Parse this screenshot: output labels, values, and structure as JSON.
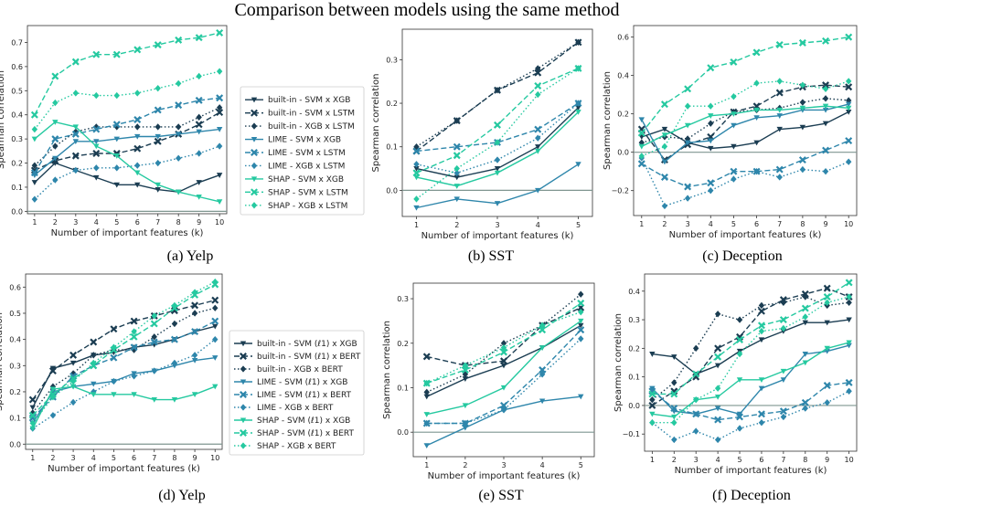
{
  "figure_title": "Comparison between models using the same method",
  "colors": {
    "builtin": "#1b3d52",
    "lime": "#2e86ab",
    "shap": "#25c9a0",
    "zero_line": "#7f9690",
    "frame": "#333333"
  },
  "legends": [
    [
      "built-in - SVM x XGB",
      "built-in - SVM x LSTM",
      "built-in - XGB x LSTM",
      "LIME - SVM x XGB",
      "LIME - SVM x LSTM",
      "LIME - XGB x LSTM",
      "SHAP - SVM x XGB",
      "SHAP - SVM x LSTM",
      "SHAP - XGB x LSTM"
    ],
    [
      "built-in - SVM (ℓ1) x XGB",
      "built-in - SVM (ℓ1) x BERT",
      "built-in - XGB x BERT",
      "LIME - SVM (ℓ1) x XGB",
      "LIME - SVM (ℓ1) x BERT",
      "LIME - XGB x BERT",
      "SHAP - SVM (ℓ1) x XGB",
      "SHAP - SVM (ℓ1) x BERT",
      "SHAP - XGB x BERT"
    ]
  ],
  "chart_data": [
    {
      "type": "line",
      "caption": "(a) Yelp",
      "dataset": "Yelp",
      "xlabel": "Number of important features (k)",
      "ylabel": "Spearman correlation",
      "x": [
        1,
        2,
        3,
        4,
        5,
        6,
        7,
        8,
        9,
        10
      ],
      "xticks": [
        1,
        2,
        3,
        4,
        5,
        6,
        7,
        8,
        9,
        10
      ],
      "ylim": [
        -0.01,
        0.77
      ],
      "yticks": [
        0.0,
        0.1,
        0.2,
        0.3,
        0.4,
        0.5,
        0.6,
        0.7
      ],
      "ytick_labels": [
        "0.0",
        "0.1",
        "0.2",
        "0.3",
        "0.4",
        "0.5",
        "0.6",
        "0.7"
      ],
      "series": [
        {
          "legend": 0,
          "values": [
            0.12,
            0.2,
            0.17,
            0.14,
            0.11,
            0.11,
            0.09,
            0.08,
            0.12,
            0.15
          ]
        },
        {
          "legend": 1,
          "values": [
            0.17,
            0.21,
            0.23,
            0.24,
            0.24,
            0.26,
            0.29,
            0.32,
            0.36,
            0.41
          ]
        },
        {
          "legend": 2,
          "values": [
            0.19,
            0.27,
            0.33,
            0.35,
            0.35,
            0.35,
            0.35,
            0.35,
            0.39,
            0.43
          ]
        },
        {
          "legend": 3,
          "values": [
            0.15,
            0.22,
            0.29,
            0.29,
            0.3,
            0.31,
            0.31,
            0.32,
            0.33,
            0.34
          ]
        },
        {
          "legend": 4,
          "values": [
            0.16,
            0.3,
            0.32,
            0.34,
            0.36,
            0.38,
            0.42,
            0.44,
            0.46,
            0.47
          ]
        },
        {
          "legend": 5,
          "values": [
            0.05,
            0.13,
            0.17,
            0.18,
            0.18,
            0.19,
            0.2,
            0.22,
            0.24,
            0.27
          ]
        },
        {
          "legend": 6,
          "values": [
            0.3,
            0.37,
            0.35,
            0.27,
            0.23,
            0.16,
            0.11,
            0.08,
            0.06,
            0.04
          ]
        },
        {
          "legend": 7,
          "values": [
            0.4,
            0.56,
            0.62,
            0.65,
            0.65,
            0.67,
            0.69,
            0.71,
            0.72,
            0.74
          ]
        },
        {
          "legend": 8,
          "values": [
            0.34,
            0.45,
            0.49,
            0.48,
            0.48,
            0.49,
            0.51,
            0.53,
            0.56,
            0.58
          ]
        }
      ]
    },
    {
      "type": "line",
      "caption": "(b) SST",
      "dataset": "SST",
      "xlabel": "Number of important features (k)",
      "ylabel": "Spearman correlation",
      "x": [
        1,
        2,
        3,
        4,
        5
      ],
      "xticks": [
        1,
        2,
        3,
        4,
        5
      ],
      "ylim": [
        -0.06,
        0.37
      ],
      "yticks": [
        0.0,
        0.1,
        0.2,
        0.3
      ],
      "ytick_labels": [
        "0.0",
        "0.1",
        "0.2",
        "0.3"
      ],
      "series": [
        {
          "legend": 0,
          "values": [
            0.05,
            0.03,
            0.05,
            0.1,
            0.19
          ]
        },
        {
          "legend": 1,
          "values": [
            0.09,
            0.16,
            0.23,
            0.27,
            0.34
          ]
        },
        {
          "legend": 2,
          "values": [
            0.1,
            0.16,
            0.23,
            0.28,
            0.34
          ]
        },
        {
          "legend": 3,
          "values": [
            -0.04,
            -0.02,
            -0.03,
            0.0,
            0.06
          ]
        },
        {
          "legend": 4,
          "values": [
            0.09,
            0.1,
            0.11,
            0.14,
            0.2
          ]
        },
        {
          "legend": 5,
          "values": [
            0.06,
            0.04,
            0.07,
            0.12,
            0.2
          ]
        },
        {
          "legend": 6,
          "values": [
            0.03,
            0.01,
            0.04,
            0.09,
            0.18
          ]
        },
        {
          "legend": 7,
          "values": [
            0.04,
            0.08,
            0.15,
            0.24,
            0.28
          ]
        },
        {
          "legend": 8,
          "values": [
            -0.02,
            0.05,
            0.11,
            0.22,
            0.28
          ]
        }
      ]
    },
    {
      "type": "line",
      "caption": "(c) Deception",
      "dataset": "Deception",
      "xlabel": "Number of important features (k)",
      "ylabel": "Spearman correlation",
      "x": [
        1,
        2,
        3,
        4,
        5,
        6,
        7,
        8,
        9,
        10
      ],
      "xticks": [
        1,
        2,
        3,
        4,
        5,
        6,
        7,
        8,
        9,
        10
      ],
      "ylim": [
        -0.33,
        0.66
      ],
      "yticks": [
        -0.2,
        0.0,
        0.2,
        0.4,
        0.6
      ],
      "ytick_labels": [
        "−0.2",
        "0.0",
        "0.2",
        "0.4",
        "0.6"
      ],
      "series": [
        {
          "legend": 0,
          "values": [
            0.08,
            0.12,
            0.05,
            0.02,
            0.03,
            0.05,
            0.12,
            0.13,
            0.15,
            0.21
          ]
        },
        {
          "legend": 1,
          "values": [
            0.12,
            -0.04,
            0.04,
            0.08,
            0.21,
            0.24,
            0.31,
            0.34,
            0.35,
            0.34
          ]
        },
        {
          "legend": 2,
          "values": [
            0.05,
            0.08,
            0.07,
            0.15,
            0.21,
            0.22,
            0.23,
            0.26,
            0.28,
            0.27
          ]
        },
        {
          "legend": 3,
          "values": [
            0.17,
            -0.05,
            0.05,
            0.06,
            0.14,
            0.18,
            0.19,
            0.22,
            0.22,
            0.25
          ]
        },
        {
          "legend": 4,
          "values": [
            -0.06,
            -0.13,
            -0.18,
            -0.16,
            -0.1,
            -0.1,
            -0.09,
            -0.04,
            0.01,
            0.06
          ]
        },
        {
          "legend": 5,
          "values": [
            -0.03,
            -0.28,
            -0.24,
            -0.2,
            -0.14,
            -0.1,
            -0.13,
            -0.09,
            -0.1,
            -0.05
          ]
        },
        {
          "legend": 6,
          "values": [
            0.03,
            0.09,
            0.14,
            0.19,
            0.2,
            0.22,
            0.22,
            0.23,
            0.24,
            0.23
          ]
        },
        {
          "legend": 7,
          "values": [
            0.1,
            0.25,
            0.33,
            0.44,
            0.47,
            0.52,
            0.56,
            0.57,
            0.58,
            0.6
          ]
        },
        {
          "legend": 8,
          "values": [
            -0.02,
            0.03,
            0.24,
            0.24,
            0.29,
            0.36,
            0.37,
            0.35,
            0.33,
            0.37
          ]
        }
      ]
    },
    {
      "type": "line",
      "caption": "(d) Yelp",
      "dataset": "Yelp",
      "xlabel": "Number of important features (k)",
      "ylabel": "Spearman correlation",
      "x": [
        1,
        2,
        3,
        4,
        5,
        6,
        7,
        8,
        9,
        10
      ],
      "xticks": [
        1,
        2,
        3,
        4,
        5,
        6,
        7,
        8,
        9,
        10
      ],
      "ylim": [
        -0.02,
        0.65
      ],
      "yticks": [
        0.0,
        0.1,
        0.2,
        0.3,
        0.4,
        0.5,
        0.6
      ],
      "ytick_labels": [
        "0.0",
        "0.1",
        "0.2",
        "0.3",
        "0.4",
        "0.5",
        "0.6"
      ],
      "series": [
        {
          "legend": 0,
          "values": [
            0.14,
            0.29,
            0.31,
            0.34,
            0.35,
            0.37,
            0.38,
            0.4,
            0.43,
            0.45
          ]
        },
        {
          "legend": 1,
          "values": [
            0.17,
            0.28,
            0.34,
            0.39,
            0.44,
            0.47,
            0.49,
            0.51,
            0.53,
            0.55
          ]
        },
        {
          "legend": 2,
          "values": [
            0.12,
            0.22,
            0.27,
            0.34,
            0.36,
            0.36,
            0.41,
            0.46,
            0.5,
            0.52
          ]
        },
        {
          "legend": 3,
          "values": [
            0.08,
            0.2,
            0.22,
            0.23,
            0.24,
            0.27,
            0.28,
            0.3,
            0.32,
            0.33
          ]
        },
        {
          "legend": 4,
          "values": [
            0.1,
            0.18,
            0.26,
            0.3,
            0.33,
            0.37,
            0.39,
            0.4,
            0.43,
            0.47
          ]
        },
        {
          "legend": 5,
          "values": [
            0.06,
            0.11,
            0.16,
            0.2,
            0.24,
            0.26,
            0.28,
            0.31,
            0.34,
            0.4
          ]
        },
        {
          "legend": 6,
          "values": [
            0.06,
            0.21,
            0.22,
            0.19,
            0.19,
            0.19,
            0.17,
            0.17,
            0.19,
            0.22
          ]
        },
        {
          "legend": 7,
          "values": [
            0.11,
            0.19,
            0.25,
            0.3,
            0.36,
            0.41,
            0.46,
            0.52,
            0.57,
            0.61
          ]
        },
        {
          "legend": 8,
          "values": [
            0.08,
            0.18,
            0.24,
            0.31,
            0.37,
            0.43,
            0.49,
            0.53,
            0.58,
            0.62
          ]
        }
      ]
    },
    {
      "type": "line",
      "caption": "(e) SST",
      "dataset": "SST",
      "xlabel": "Number of important features (k)",
      "ylabel": "Spearman correlation",
      "x": [
        1,
        2,
        3,
        4,
        5
      ],
      "xticks": [
        1,
        2,
        3,
        4,
        5
      ],
      "ylim": [
        -0.055,
        0.335
      ],
      "yticks": [
        0.0,
        0.1,
        0.2,
        0.3
      ],
      "ytick_labels": [
        "0.0",
        "0.1",
        "0.2",
        "0.3"
      ],
      "series": [
        {
          "legend": 0,
          "values": [
            0.08,
            0.12,
            0.15,
            0.19,
            0.24
          ]
        },
        {
          "legend": 1,
          "values": [
            0.17,
            0.15,
            0.16,
            0.24,
            0.28
          ]
        },
        {
          "legend": 2,
          "values": [
            0.09,
            0.13,
            0.2,
            0.24,
            0.31
          ]
        },
        {
          "legend": 3,
          "values": [
            -0.03,
            0.01,
            0.05,
            0.07,
            0.08
          ]
        },
        {
          "legend": 4,
          "values": [
            0.02,
            0.02,
            0.06,
            0.14,
            0.23
          ]
        },
        {
          "legend": 5,
          "values": [
            0.02,
            0.02,
            0.05,
            0.13,
            0.21
          ]
        },
        {
          "legend": 6,
          "values": [
            0.04,
            0.06,
            0.1,
            0.19,
            0.25
          ]
        },
        {
          "legend": 7,
          "values": [
            0.11,
            0.14,
            0.18,
            0.23,
            0.29
          ]
        },
        {
          "legend": 8,
          "values": [
            0.11,
            0.15,
            0.19,
            0.24,
            0.27
          ]
        }
      ]
    },
    {
      "type": "line",
      "caption": "(f) Deception",
      "dataset": "Deception",
      "xlabel": "Number of important features (k)",
      "ylabel": "Spearman correlation",
      "x": [
        1,
        2,
        3,
        4,
        5,
        6,
        7,
        8,
        9,
        10
      ],
      "xticks": [
        1,
        2,
        3,
        4,
        5,
        6,
        7,
        8,
        9,
        10
      ],
      "ylim": [
        -0.16,
        0.46
      ],
      "yticks": [
        -0.1,
        0.0,
        0.1,
        0.2,
        0.3,
        0.4
      ],
      "ytick_labels": [
        "−0.1",
        "0.0",
        "0.1",
        "0.2",
        "0.3",
        "0.4"
      ],
      "series": [
        {
          "legend": 0,
          "values": [
            0.18,
            0.17,
            0.11,
            0.14,
            0.19,
            0.23,
            0.26,
            0.29,
            0.29,
            0.3
          ]
        },
        {
          "legend": 1,
          "values": [
            0.0,
            0.05,
            0.1,
            0.2,
            0.24,
            0.33,
            0.37,
            0.39,
            0.41,
            0.38
          ]
        },
        {
          "legend": 2,
          "values": [
            0.02,
            0.08,
            0.2,
            0.32,
            0.3,
            0.35,
            0.36,
            0.38,
            0.35,
            0.36
          ]
        },
        {
          "legend": 3,
          "values": [
            0.06,
            -0.02,
            -0.03,
            -0.01,
            -0.03,
            0.06,
            0.09,
            0.18,
            0.19,
            0.21
          ]
        },
        {
          "legend": 4,
          "values": [
            0.05,
            -0.01,
            -0.03,
            -0.05,
            -0.04,
            -0.03,
            -0.02,
            0.01,
            0.07,
            0.08
          ]
        },
        {
          "legend": 5,
          "values": [
            -0.06,
            -0.12,
            -0.09,
            -0.12,
            -0.08,
            -0.06,
            -0.04,
            -0.01,
            0.01,
            0.05
          ]
        },
        {
          "legend": 6,
          "values": [
            -0.03,
            -0.04,
            0.02,
            0.03,
            0.09,
            0.09,
            0.12,
            0.15,
            0.2,
            0.22
          ]
        },
        {
          "legend": 7,
          "values": [
            0.04,
            0.04,
            0.11,
            0.17,
            0.23,
            0.28,
            0.3,
            0.34,
            0.38,
            0.43
          ]
        },
        {
          "legend": 8,
          "values": [
            -0.06,
            -0.06,
            0.02,
            0.06,
            0.18,
            0.26,
            0.27,
            0.31,
            0.36,
            0.38
          ]
        }
      ]
    }
  ]
}
